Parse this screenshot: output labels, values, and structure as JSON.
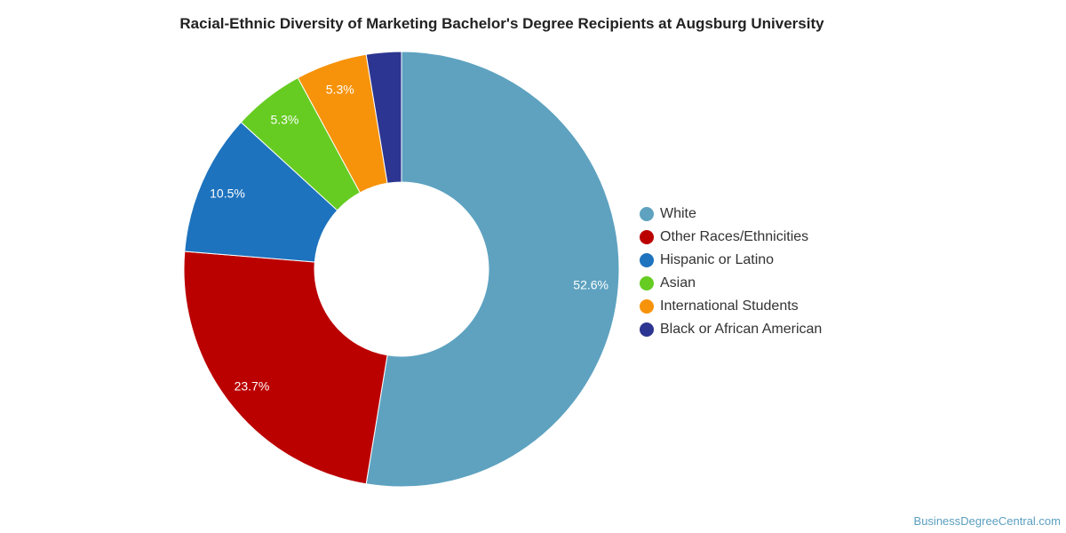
{
  "chart_data": {
    "type": "pie",
    "title": "Racial-Ethnic Diversity of Marketing Bachelor's Degree Recipients at Augsburg University",
    "donut": true,
    "legend_position": "right",
    "slices": [
      {
        "name": "White",
        "value": 52.6,
        "label": "52.6%",
        "color": "#5ea2c0"
      },
      {
        "name": "Other Races/Ethnicities",
        "value": 23.7,
        "label": "23.7%",
        "color": "#bb0000"
      },
      {
        "name": "Hispanic or Latino",
        "value": 10.5,
        "label": "10.5%",
        "color": "#1e73be"
      },
      {
        "name": "Asian",
        "value": 5.3,
        "label": "5.3%",
        "color": "#66cc22"
      },
      {
        "name": "International Students",
        "value": 5.3,
        "label": "5.3%",
        "color": "#f7930a"
      },
      {
        "name": "Black or African American",
        "value": 2.6,
        "label": "",
        "color": "#2c3591"
      }
    ]
  },
  "watermark": "BusinessDegreeCentral.com"
}
